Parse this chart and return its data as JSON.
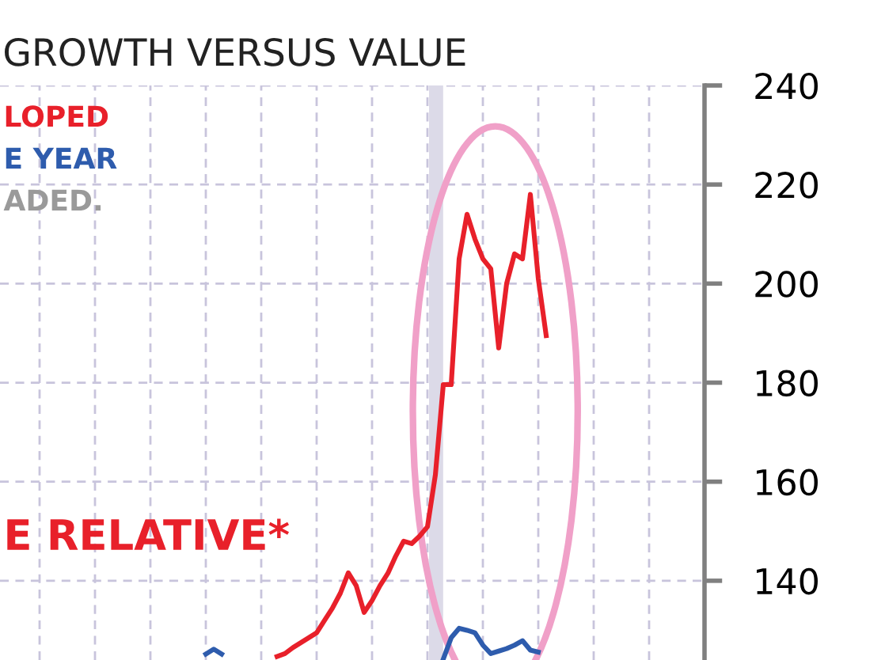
{
  "chart_data": {
    "type": "line",
    "title": "GROWTH VERSUS VALUE",
    "categories": [
      null,
      null,
      null,
      null,
      null,
      null,
      null,
      null,
      null,
      null,
      null,
      null,
      null,
      null,
      null,
      null,
      null,
      null,
      null,
      null,
      null,
      null,
      null,
      null,
      null,
      null,
      null,
      null,
      null,
      null,
      null,
      null,
      null,
      null,
      null,
      null,
      null,
      null,
      null,
      null,
      null,
      null,
      null,
      null,
      null,
      null,
      null,
      null,
      null,
      null,
      null,
      null,
      null,
      null,
      null,
      null,
      null,
      null,
      null,
      null,
      null,
      null,
      null,
      null,
      null,
      null,
      null,
      null,
      null,
      null,
      null,
      null,
      null,
      null,
      null,
      null,
      null,
      null,
      null,
      null,
      null,
      null,
      null,
      null,
      null,
      null,
      null,
      null,
      null,
      null
    ],
    "series": [
      {
        "name": "LOPED",
        "color": "#e8202a",
        "values": [
          null,
          null,
          null,
          null,
          null,
          null,
          null,
          null,
          null,
          null,
          null,
          null,
          null,
          null,
          null,
          null,
          null,
          null,
          null,
          null,
          null,
          null,
          null,
          null,
          null,
          null,
          null,
          null,
          null,
          null,
          null,
          null,
          null,
          null,
          null,
          124.7,
          125.3,
          126.5,
          127.5,
          128.5,
          129.5,
          132,
          134.5,
          137.5,
          141.6,
          139,
          133.6,
          136,
          139,
          141.5,
          145,
          148,
          147.5,
          149,
          150.9,
          161.4,
          179.6,
          179.6,
          205,
          214,
          209,
          205,
          203,
          187,
          200,
          206,
          205,
          218,
          201,
          189.5,
          null,
          null,
          null,
          null,
          null,
          null,
          null,
          null,
          null,
          null,
          null,
          null,
          null,
          null,
          null,
          null,
          null,
          null,
          null,
          null
        ]
      },
      {
        "name": "E YEAR",
        "color": "#2e5cad",
        "values": [
          null,
          null,
          null,
          null,
          null,
          null,
          null,
          null,
          null,
          null,
          null,
          null,
          null,
          null,
          null,
          null,
          null,
          null,
          null,
          null,
          null,
          null,
          null,
          null,
          null,
          null,
          null,
          null,
          null,
          null,
          null,
          null,
          null,
          null,
          null,
          null,
          null,
          null,
          null,
          null,
          null,
          null,
          null,
          null,
          null,
          null,
          null,
          null,
          null,
          null,
          null,
          null,
          null,
          null,
          null,
          null,
          124.2,
          128.5,
          130.4,
          130,
          129.5,
          127,
          125.3,
          125.8,
          126.3,
          127,
          127.9,
          126,
          125.6,
          null,
          null,
          null,
          null,
          null,
          null,
          null,
          null,
          null,
          null,
          null,
          null,
          null,
          null,
          null,
          null,
          null,
          null,
          null,
          null,
          null
        ]
      },
      {
        "color": "#2e5cad",
        "values": [
          null,
          null,
          null,
          null,
          null,
          null,
          null,
          null,
          null,
          null,
          null,
          null,
          null,
          null,
          null,
          null,
          null,
          null,
          null,
          null,
          null,
          null,
          null,
          null,
          null,
          null,
          125.2,
          126.2,
          125.2,
          null,
          null,
          null,
          null,
          null,
          null,
          null,
          null,
          null,
          null,
          null,
          null,
          null,
          null,
          null,
          null,
          null,
          null,
          null,
          null,
          null,
          null,
          null,
          null,
          null,
          null,
          null,
          null,
          null,
          null,
          null,
          null,
          null,
          null,
          null,
          null,
          null,
          null,
          null,
          null,
          null,
          null,
          null,
          null,
          null,
          null,
          null,
          null,
          null,
          null,
          null,
          null,
          null,
          null,
          null,
          null,
          null,
          null,
          null,
          null,
          null
        ]
      }
    ],
    "annotations": [
      "ADED.",
      "E RELATIVE*"
    ],
    "ylim": [
      124,
      240
    ],
    "yticks": [
      140,
      160,
      180,
      200,
      220,
      240
    ],
    "grid": true,
    "tick_labels": "y",
    "line_style": "solid"
  }
}
